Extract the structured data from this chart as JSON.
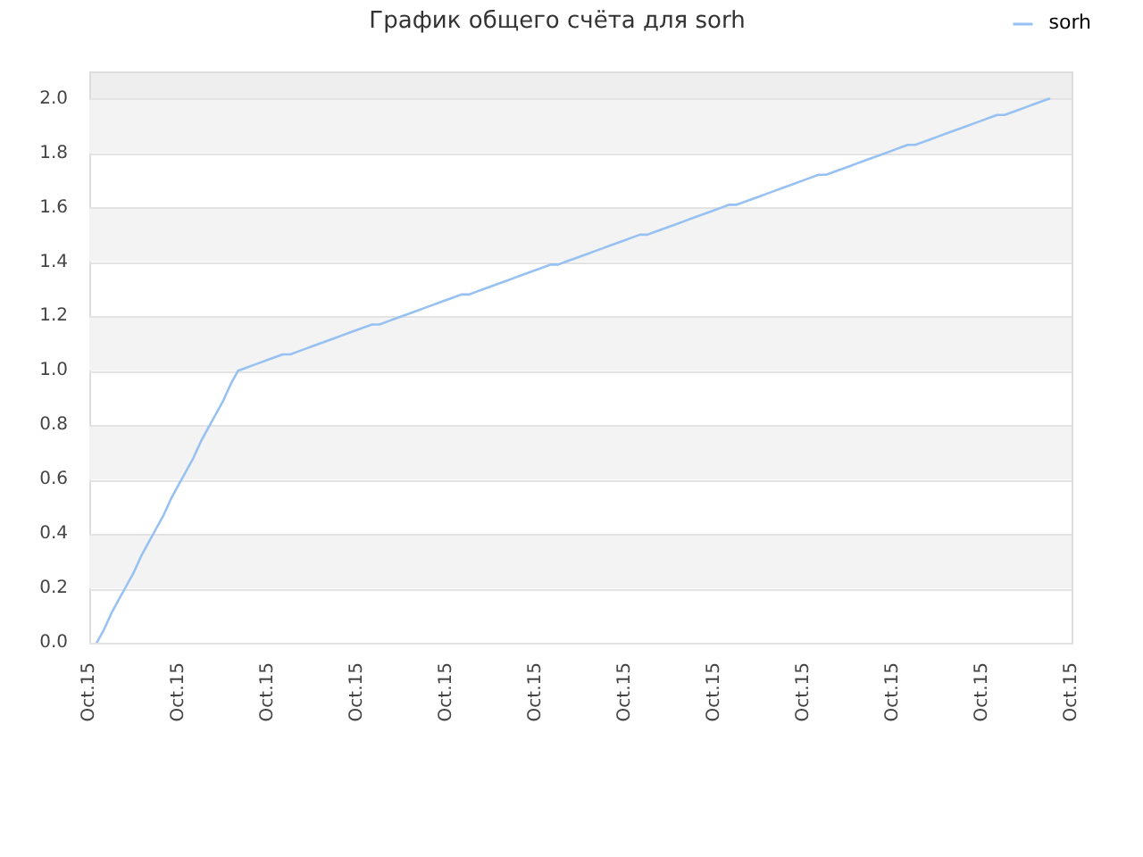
{
  "chart_data": {
    "type": "line",
    "title": "График общего счёта для sorh",
    "categories": [
      "Oct.15",
      null,
      null,
      null,
      null,
      null,
      null,
      null,
      null,
      null,
      null,
      null,
      "Oct.15",
      null,
      null,
      null,
      null,
      null,
      null,
      null,
      null,
      null,
      null,
      null,
      "Oct.15",
      null,
      null,
      null,
      null,
      null,
      null,
      null,
      null,
      null,
      null,
      null,
      "Oct.15",
      null,
      null,
      null,
      null,
      null,
      null,
      null,
      null,
      null,
      null,
      null,
      "Oct.15",
      null,
      null,
      null,
      null,
      null,
      null,
      null,
      null,
      null,
      null,
      null,
      "Oct.15",
      null,
      null,
      null,
      null,
      null,
      null,
      null,
      null,
      null,
      null,
      null,
      "Oct.15",
      null,
      null,
      null,
      null,
      null,
      null,
      null,
      null,
      null,
      null,
      null,
      "Oct.15",
      null,
      null,
      null,
      null,
      null,
      null,
      null,
      null,
      null,
      null,
      null,
      "Oct.15",
      null,
      null,
      null,
      null,
      null,
      null,
      null,
      null,
      null,
      null,
      null,
      "Oct.15",
      null,
      null,
      null,
      null,
      null,
      null,
      null,
      null,
      null,
      null,
      null,
      "Oct.15",
      null,
      null,
      null,
      null,
      null,
      null,
      null,
      null,
      null,
      null,
      null,
      "Oct.15"
    ],
    "series": [
      {
        "name": "sorh",
        "color": "#97c1f2",
        "values": [
          null,
          0,
          0.05,
          0.11,
          0.16,
          0.21,
          0.26,
          0.32,
          0.37,
          0.42,
          0.47,
          0.53,
          0.58,
          0.63,
          0.68,
          0.74,
          0.79,
          0.84,
          0.89,
          0.95,
          1.0,
          1.01,
          1.02,
          1.03,
          1.04,
          1.05,
          1.06,
          1.06,
          1.07,
          1.08,
          1.09,
          1.1,
          1.11,
          1.12,
          1.13,
          1.14,
          1.15,
          1.16,
          1.17,
          1.17,
          1.18,
          1.19,
          1.2,
          1.21,
          1.22,
          1.23,
          1.24,
          1.25,
          1.26,
          1.27,
          1.28,
          1.28,
          1.29,
          1.3,
          1.31,
          1.32,
          1.33,
          1.34,
          1.35,
          1.36,
          1.37,
          1.38,
          1.39,
          1.39,
          1.4,
          1.41,
          1.42,
          1.43,
          1.44,
          1.45,
          1.46,
          1.47,
          1.48,
          1.49,
          1.5,
          1.5,
          1.51,
          1.52,
          1.53,
          1.54,
          1.55,
          1.56,
          1.57,
          1.58,
          1.59,
          1.6,
          1.61,
          1.61,
          1.62,
          1.63,
          1.64,
          1.65,
          1.66,
          1.67,
          1.68,
          1.69,
          1.7,
          1.71,
          1.72,
          1.72,
          1.73,
          1.74,
          1.75,
          1.76,
          1.77,
          1.78,
          1.79,
          1.8,
          1.81,
          1.82,
          1.83,
          1.83,
          1.84,
          1.85,
          1.86,
          1.87,
          1.88,
          1.89,
          1.9,
          1.91,
          1.92,
          1.93,
          1.94,
          1.94,
          1.95,
          1.96,
          1.97,
          1.98,
          1.99,
          2.0,
          null,
          null,
          null
        ]
      }
    ],
    "ylim": [
      0,
      2.1
    ],
    "yticks": [
      {
        "value": 0,
        "label": "0.0"
      },
      0.2,
      0.4,
      0.6,
      0.8,
      {
        "value": 1,
        "label": "1.0"
      },
      1.2,
      1.4,
      1.6,
      1.8,
      {
        "value": 2,
        "label": "2.0"
      }
    ],
    "grid": "y",
    "legend": "top right",
    "marker": "none",
    "line_style": "solid"
  }
}
